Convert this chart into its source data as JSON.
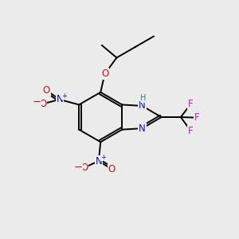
{
  "background_color": "#ebebeb",
  "bond_color": "#000000",
  "bond_width": 1.4,
  "atom_colors": {
    "N": "#1010cc",
    "O": "#cc1010",
    "F": "#cc10cc",
    "H": "#2a8080"
  },
  "font_size": 8.5,
  "font_size_small": 6.5,
  "xlim": [
    0,
    10
  ],
  "ylim": [
    0,
    10
  ],
  "figsize": [
    3.0,
    3.0
  ],
  "dpi": 100
}
